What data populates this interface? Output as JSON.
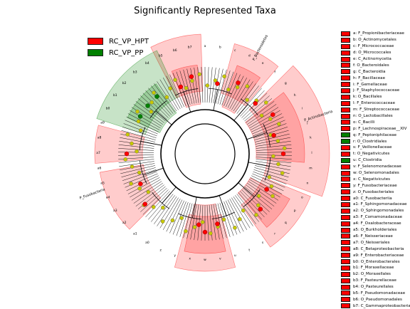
{
  "title": "Significantly Represented Taxa",
  "groups": [
    {
      "name": "RC_VP_HPT",
      "color": "#ff0000"
    },
    {
      "name": "RC_VP_PP",
      "color": "#008000"
    }
  ],
  "taxa": [
    {
      "label": "a: F_Propionibacteriaceae",
      "group": "RC_VP_HPT"
    },
    {
      "label": "b: O_Actinomycetales",
      "group": "RC_VP_HPT"
    },
    {
      "label": "c: F_Micrococcaceae",
      "group": "RC_VP_HPT"
    },
    {
      "label": "d: O_Micrococcales",
      "group": "RC_VP_HPT"
    },
    {
      "label": "e: C_Actinomycetia",
      "group": "RC_VP_HPT"
    },
    {
      "label": "f: O_Bacteroidales",
      "group": "RC_VP_HPT"
    },
    {
      "label": "g: C_Bacteroidia",
      "group": "RC_VP_HPT"
    },
    {
      "label": "h: F_Bacillaceae",
      "group": "RC_VP_HPT"
    },
    {
      "label": "i: F_Gemellaceae",
      "group": "RC_VP_HPT"
    },
    {
      "label": "j: F_Staphylococcaceae",
      "group": "RC_VP_HPT"
    },
    {
      "label": "k: O_Bacillales",
      "group": "RC_VP_HPT"
    },
    {
      "label": "l: F_Enterococcaceae",
      "group": "RC_VP_HPT"
    },
    {
      "label": "m: F_Streptococcaceae",
      "group": "RC_VP_HPT"
    },
    {
      "label": "n: O_Lactobacillales",
      "group": "RC_VP_HPT"
    },
    {
      "label": "o: C_Bacilli",
      "group": "RC_VP_HPT"
    },
    {
      "label": "p: F_Lachnospiraceae__XIV",
      "group": "RC_VP_HPT"
    },
    {
      "label": "q: F_Peptoniphilaceae",
      "group": "RC_VP_PP"
    },
    {
      "label": "r: O_Clostridiales",
      "group": "RC_VP_PP"
    },
    {
      "label": "s: F_Veillonellaceae",
      "group": "RC_VP_HPT"
    },
    {
      "label": "t: O_Negativicutes",
      "group": "RC_VP_HPT"
    },
    {
      "label": "u: C_Clostridia",
      "group": "RC_VP_PP"
    },
    {
      "label": "v: F_Selenomonadaceae",
      "group": "RC_VP_HPT"
    },
    {
      "label": "w: O_Selenomonadales",
      "group": "RC_VP_HPT"
    },
    {
      "label": "x: C_Negativicutes",
      "group": "RC_VP_HPT"
    },
    {
      "label": "y: F_Fusobacteriaceae",
      "group": "RC_VP_HPT"
    },
    {
      "label": "z: O_Fusobacteriales",
      "group": "RC_VP_HPT"
    },
    {
      "label": "a0: C_Fusobacteriia",
      "group": "RC_VP_HPT"
    },
    {
      "label": "a1: F_Sphingomonadaceae",
      "group": "RC_VP_HPT"
    },
    {
      "label": "a2: O_Sphingomonadales",
      "group": "RC_VP_HPT"
    },
    {
      "label": "a3: F_Comamonadaceae",
      "group": "RC_VP_HPT"
    },
    {
      "label": "a4: F_Oxalobacteraceae",
      "group": "RC_VP_HPT"
    },
    {
      "label": "a5: O_Burkholderiales",
      "group": "RC_VP_HPT"
    },
    {
      "label": "a6: F_Neisseriaceae",
      "group": "RC_VP_HPT"
    },
    {
      "label": "a7: O_Neisseriales",
      "group": "RC_VP_HPT"
    },
    {
      "label": "a8: C_Betaproteobacteria",
      "group": "RC_VP_HPT"
    },
    {
      "label": "a9: F_Enterobacteriaceae",
      "group": "RC_VP_HPT"
    },
    {
      "label": "b0: O_Enterobacterales",
      "group": "RC_VP_HPT"
    },
    {
      "label": "b1: F_Moraxellaceae",
      "group": "RC_VP_HPT"
    },
    {
      "label": "b2: O_Moraxellales",
      "group": "RC_VP_HPT"
    },
    {
      "label": "b3: F_Pasteurellaceae",
      "group": "RC_VP_HPT"
    },
    {
      "label": "b4: O_Pasteurellales",
      "group": "RC_VP_HPT"
    },
    {
      "label": "b5: F_Pseudomonadaceae",
      "group": "RC_VP_HPT"
    },
    {
      "label": "b6: O_Pseudomonadales",
      "group": "RC_VP_HPT"
    },
    {
      "label": "b7: C_Gammaproteobacteria",
      "group": "RC_VP_HPT"
    }
  ],
  "clades": [
    {
      "label": "a",
      "group": "RC_VP_HPT"
    },
    {
      "label": "b",
      "group": "RC_VP_HPT"
    },
    {
      "label": "c",
      "group": "RC_VP_HPT"
    },
    {
      "label": "d",
      "group": "RC_VP_HPT"
    },
    {
      "label": "e",
      "group": "RC_VP_HPT"
    },
    {
      "label": "f",
      "group": "RC_VP_HPT"
    },
    {
      "label": "g",
      "group": "RC_VP_HPT"
    },
    {
      "label": "h",
      "group": "RC_VP_HPT"
    },
    {
      "label": "i",
      "group": "RC_VP_HPT"
    },
    {
      "label": "j",
      "group": "RC_VP_HPT"
    },
    {
      "label": "k",
      "group": "RC_VP_HPT"
    },
    {
      "label": "l",
      "group": "RC_VP_HPT"
    },
    {
      "label": "m",
      "group": "RC_VP_HPT"
    },
    {
      "label": "n",
      "group": "RC_VP_HPT"
    },
    {
      "label": "o",
      "group": "RC_VP_HPT"
    },
    {
      "label": "p",
      "group": "RC_VP_HPT"
    },
    {
      "label": "q",
      "group": "RC_VP_PP"
    },
    {
      "label": "r",
      "group": "RC_VP_PP"
    },
    {
      "label": "s",
      "group": "RC_VP_HPT"
    },
    {
      "label": "t",
      "group": "RC_VP_HPT"
    },
    {
      "label": "u",
      "group": "RC_VP_PP"
    },
    {
      "label": "v",
      "group": "RC_VP_HPT"
    },
    {
      "label": "w",
      "group": "RC_VP_HPT"
    },
    {
      "label": "x",
      "group": "RC_VP_HPT"
    },
    {
      "label": "y",
      "group": "RC_VP_HPT"
    },
    {
      "label": "z",
      "group": "RC_VP_HPT"
    },
    {
      "label": "a0",
      "group": "RC_VP_HPT"
    },
    {
      "label": "a1",
      "group": "RC_VP_HPT"
    },
    {
      "label": "a2",
      "group": "RC_VP_HPT"
    },
    {
      "label": "a3",
      "group": "RC_VP_HPT"
    },
    {
      "label": "a4",
      "group": "RC_VP_HPT"
    },
    {
      "label": "a5",
      "group": "RC_VP_HPT"
    },
    {
      "label": "a6",
      "group": "RC_VP_HPT"
    },
    {
      "label": "a7",
      "group": "RC_VP_HPT"
    },
    {
      "label": "a8",
      "group": "RC_VP_HPT"
    },
    {
      "label": "a9",
      "group": "RC_VP_HPT"
    },
    {
      "label": "b0",
      "group": "RC_VP_HPT"
    },
    {
      "label": "b1",
      "group": "RC_VP_HPT"
    },
    {
      "label": "b2",
      "group": "RC_VP_HPT"
    },
    {
      "label": "b3",
      "group": "RC_VP_HPT"
    },
    {
      "label": "b4",
      "group": "RC_VP_HPT"
    },
    {
      "label": "b5",
      "group": "RC_VP_HPT"
    },
    {
      "label": "b6",
      "group": "RC_VP_HPT"
    },
    {
      "label": "b7",
      "group": "RC_VP_HPT"
    }
  ],
  "phyla": [
    {
      "label": "P_Bacteroidetes",
      "group": "RC_VP_HPT"
    },
    {
      "label": "P_Actinobacteria",
      "group": "RC_VP_HPT"
    },
    {
      "label": "P_Fusobacteria",
      "group": "RC_VP_HPT"
    }
  ],
  "colors": {
    "hpt": "#ff0000",
    "pp": "#008000",
    "nonsig": "#c8c800"
  }
}
